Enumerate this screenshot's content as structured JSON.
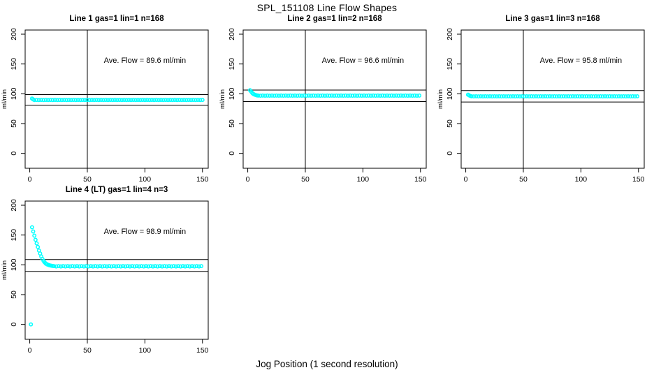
{
  "main_title": "SPL_151108  Line Flow Shapes",
  "xlabel": "Jog Position (1 second resolution)",
  "colors": {
    "point": "#00ffff",
    "line": "#000000",
    "text": "#000000",
    "background": "#ffffff"
  },
  "chart_data": {
    "type": "scatter",
    "title": "SPL_151108  Line Flow Shapes",
    "xlabel": "Jog Position (1 second resolution)",
    "ylabel": "ml/min",
    "marker": "open-circle",
    "grid": false,
    "legend": "none",
    "xlim": [
      -4,
      155
    ],
    "ylim": [
      -25,
      207
    ],
    "x_ticks": [
      0,
      50,
      100,
      150
    ],
    "y_ticks": [
      0,
      50,
      100,
      150,
      200
    ],
    "vline_x": 50,
    "panels": [
      {
        "title": "Line 1 gas=1 lin=1 n=168",
        "avg_flow": 89.6,
        "avg_label": "Ave. Flow =  89.6  ml/min",
        "hlines": [
          98.6,
          80.6
        ],
        "points": [
          [
            2,
            92
          ],
          [
            3,
            90.5
          ],
          {
            "x0": 4,
            "x1": 150,
            "step": 2,
            "y": 89.5,
            "y2": 89.7
          }
        ]
      },
      {
        "title": "Line 2 gas=1 lin=2 n=168",
        "avg_flow": 96.6,
        "avg_label": "Ave. Flow =  96.6  ml/min",
        "hlines": [
          106.3,
          86.9
        ],
        "points": [
          [
            2,
            106
          ],
          [
            3,
            103.5
          ],
          [
            4,
            101
          ],
          [
            5,
            99.5
          ],
          [
            6,
            98.5
          ],
          [
            7,
            97.8
          ],
          [
            8,
            97.3
          ],
          {
            "x0": 9,
            "x1": 150,
            "step": 2,
            "y": 97.0,
            "y2": 96.8
          }
        ]
      },
      {
        "title": "Line 3 gas=1 lin=3 n=168",
        "avg_flow": 95.8,
        "avg_label": "Ave. Flow =  95.8  ml/min",
        "hlines": [
          105.4,
          86.2
        ],
        "points": [
          [
            2,
            98.5
          ],
          [
            3,
            97.2
          ],
          [
            4,
            96.4
          ],
          {
            "x0": 5,
            "x1": 150,
            "step": 2,
            "y": 95.8,
            "y2": 95.6
          }
        ]
      },
      {
        "title": "Line 4 (LT) gas=1 lin=4 n=3",
        "avg_flow": 98.9,
        "avg_label": "Ave. Flow =  98.9  ml/min",
        "hlines": [
          108.8,
          89.0
        ],
        "points": [
          [
            1,
            0
          ],
          [
            2,
            163
          ],
          [
            3,
            156
          ],
          [
            4,
            149
          ],
          [
            5,
            142
          ],
          [
            6,
            136
          ],
          [
            7,
            130
          ],
          [
            8,
            124
          ],
          [
            9,
            119
          ],
          [
            10,
            114
          ],
          [
            11,
            110
          ],
          [
            12,
            106.5
          ],
          [
            13,
            104
          ],
          [
            14,
            102
          ],
          [
            15,
            100.8
          ],
          [
            16,
            100
          ],
          [
            17,
            99.3
          ],
          [
            18,
            98.8
          ],
          [
            19,
            98.4
          ],
          [
            20,
            98.1
          ],
          {
            "x0": 21,
            "x1": 150,
            "step": 2,
            "y": 97.8,
            "y2": 97.3
          }
        ]
      }
    ]
  }
}
